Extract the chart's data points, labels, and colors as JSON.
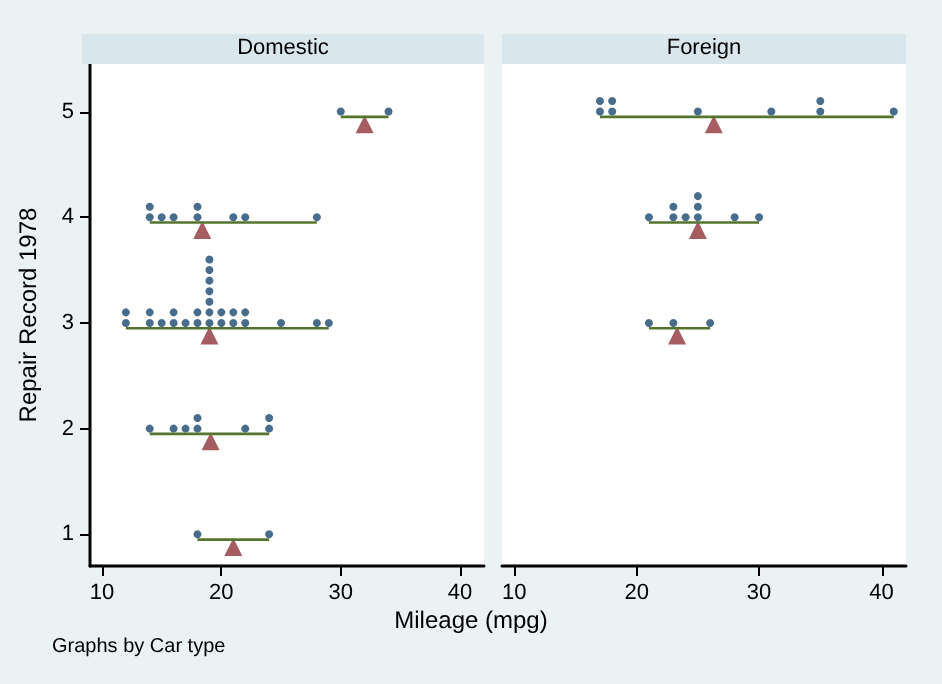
{
  "chart_data": [
    {
      "type": "scatter",
      "title": "Domestic",
      "ylabel": "Repair Record 1978",
      "xlabel": "Mileage (mpg)",
      "annotations": [
        "Graphs by Car type"
      ],
      "xlim": [
        9,
        42
      ],
      "xticks": [
        10,
        20,
        30,
        40
      ],
      "ylim": [
        0.7,
        5.45
      ],
      "yticks": [
        1,
        2,
        3,
        4,
        5
      ],
      "series": [
        {
          "marker": "circle",
          "color": "#1a476f",
          "x": [
            18,
            24,
            14,
            16,
            17,
            18,
            18,
            22,
            24,
            24,
            12,
            12,
            14,
            14,
            15,
            16,
            16,
            17,
            18,
            18,
            19,
            19,
            19,
            19,
            19,
            19,
            19,
            20,
            20,
            21,
            21,
            22,
            22,
            25,
            28,
            29,
            14,
            14,
            15,
            16,
            18,
            18,
            21,
            22,
            28,
            30,
            34
          ],
          "values": [
            1,
            1,
            2,
            2,
            2,
            2,
            2.1,
            2,
            2,
            2.1,
            3,
            3.1,
            3,
            3.1,
            3,
            3,
            3.1,
            3,
            3,
            3.1,
            3,
            3.1,
            3.2,
            3.3,
            3.4,
            3.5,
            3.6,
            3,
            3.1,
            3,
            3.1,
            3,
            3.1,
            3,
            3,
            3,
            4,
            4.1,
            4,
            4,
            4,
            4.1,
            4,
            4,
            4,
            5,
            5
          ]
        },
        {
          "type": "line",
          "color": "#55752f",
          "x": [
            18,
            24
          ],
          "values": [
            0.95,
            0.95
          ]
        },
        {
          "type": "line",
          "color": "#55752f",
          "x": [
            14,
            24
          ],
          "values": [
            1.95,
            1.95
          ]
        },
        {
          "type": "line",
          "color": "#55752f",
          "x": [
            12,
            29
          ],
          "values": [
            2.95,
            2.95
          ]
        },
        {
          "type": "line",
          "color": "#55752f",
          "x": [
            14,
            28
          ],
          "values": [
            3.95,
            3.95
          ]
        },
        {
          "type": "line",
          "color": "#55752f",
          "x": [
            30,
            34
          ],
          "values": [
            4.95,
            4.95
          ]
        },
        {
          "marker": "triangle",
          "color": "#90353b",
          "x": [
            21,
            19.1,
            19,
            18.4,
            32
          ],
          "values": [
            0.88,
            1.88,
            2.88,
            3.88,
            4.88
          ]
        }
      ]
    },
    {
      "type": "scatter",
      "title": "Foreign",
      "xlim": [
        9,
        42
      ],
      "xticks": [
        10,
        20,
        30,
        40
      ],
      "ylim": [
        0.7,
        5.45
      ],
      "yticks": [
        1,
        2,
        3,
        4,
        5
      ],
      "tick_labels": "x",
      "series": [
        {
          "marker": "circle",
          "color": "#1a476f",
          "x": [
            21,
            23,
            26,
            21,
            23,
            23,
            24,
            25,
            25,
            25,
            28,
            30,
            17,
            17,
            18,
            18,
            25,
            31,
            35,
            35,
            41
          ],
          "values": [
            3,
            3,
            3,
            4,
            4,
            4.1,
            4,
            4,
            4.1,
            4.2,
            4,
            4,
            5,
            5.1,
            5,
            5.1,
            5,
            5,
            5,
            5.1,
            5
          ]
        },
        {
          "type": "line",
          "color": "#55752f",
          "x": [
            21,
            26
          ],
          "values": [
            2.95,
            2.95
          ]
        },
        {
          "type": "line",
          "color": "#55752f",
          "x": [
            21,
            30
          ],
          "values": [
            3.95,
            3.95
          ]
        },
        {
          "type": "line",
          "color": "#55752f",
          "x": [
            17,
            41
          ],
          "values": [
            4.95,
            4.95
          ]
        },
        {
          "marker": "triangle",
          "color": "#90353b",
          "x": [
            23.3,
            25,
            26.3
          ],
          "values": [
            2.88,
            3.88,
            4.88
          ]
        }
      ]
    }
  ]
}
